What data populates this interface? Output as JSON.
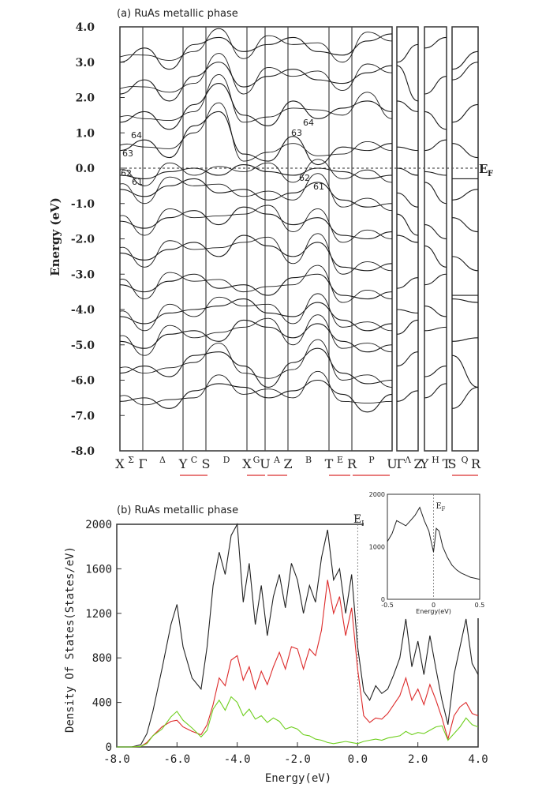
{
  "chart_data": [
    {
      "type": "line",
      "title": "(a) RuAs metallic phase",
      "ylabel": "Energy (eV)",
      "ylim": [
        -8.0,
        4.0
      ],
      "yticks": [
        "4.0",
        "3.0",
        "2.0",
        "1.0",
        "0.0",
        "-1.0",
        "-2.0",
        "-3.0",
        "-4.0",
        "-5.0",
        "-6.0",
        "-7.0",
        "-8.0"
      ],
      "fermi_label": "E",
      "fermi_sub": "F",
      "kpath_labels": [
        {
          "text": "X",
          "size": "big"
        },
        {
          "text": "Σ",
          "size": "small"
        },
        {
          "text": "Γ",
          "size": "big"
        },
        {
          "text": "Δ",
          "size": "small"
        },
        {
          "text": "Y",
          "size": "big"
        },
        {
          "text": "C",
          "size": "small"
        },
        {
          "text": "S",
          "size": "big"
        },
        {
          "text": "D",
          "size": "small"
        },
        {
          "text": "X",
          "size": "big"
        },
        {
          "text": "G",
          "size": "small"
        },
        {
          "text": "U",
          "size": "big"
        },
        {
          "text": "A",
          "size": "small"
        },
        {
          "text": "Z",
          "size": "big"
        },
        {
          "text": "B",
          "size": "small"
        },
        {
          "text": "T",
          "size": "big"
        },
        {
          "text": "E",
          "size": "small"
        },
        {
          "text": "R",
          "size": "big"
        },
        {
          "text": "P",
          "size": "small"
        },
        {
          "text": "U",
          "size": "big"
        },
        {
          "text": "Γ",
          "size": "big"
        },
        {
          "text": "Λ",
          "size": "small"
        },
        {
          "text": "Z",
          "size": "big"
        },
        {
          "text": "Y",
          "size": "big"
        },
        {
          "text": "H",
          "size": "small"
        },
        {
          "text": "T",
          "size": "big"
        },
        {
          "text": "S",
          "size": "big"
        },
        {
          "text": "Q",
          "size": "small"
        },
        {
          "text": "R",
          "size": "big"
        }
      ],
      "band_labels": [
        "64",
        "63",
        "62",
        "61",
        "64",
        "63",
        "62",
        "61"
      ],
      "series": [
        {
          "values": [
            -6.6,
            -6.5,
            -6.8,
            -6.3,
            -6.1,
            -6.2,
            -6.5,
            -6.3,
            -6.0,
            -6.4,
            -6.9,
            -6.4
          ]
        },
        {
          "values": [
            -5.8,
            -5.6,
            -5.9,
            -5.3,
            -5.2,
            -5.6,
            -6.2,
            -5.5,
            -5.1,
            -5.8,
            -6.1,
            -6.0
          ]
        },
        {
          "values": [
            -4.9,
            -5.1,
            -4.7,
            -4.6,
            -4.9,
            -4.3,
            -4.5,
            -4.8,
            -4.4,
            -4.9,
            -5.2,
            -5.0
          ]
        },
        {
          "values": [
            -4.2,
            -4.4,
            -4.1,
            -4.0,
            -3.9,
            -3.7,
            -4.1,
            -4.2,
            -3.8,
            -4.3,
            -4.6,
            -4.4
          ]
        },
        {
          "values": [
            -3.3,
            -3.5,
            -3.2,
            -3.0,
            -3.4,
            -3.3,
            -3.6,
            -3.1,
            -3.0,
            -3.6,
            -3.7,
            -3.5
          ]
        },
        {
          "values": [
            -2.4,
            -2.6,
            -2.3,
            -2.1,
            -2.5,
            -1.9,
            -2.2,
            -2.5,
            -2.1,
            -2.8,
            -2.9,
            -2.7
          ]
        },
        {
          "values": [
            -1.5,
            -1.7,
            -1.4,
            -1.2,
            -1.6,
            -1.1,
            -1.3,
            -1.6,
            -1.4,
            -1.9,
            -2.0,
            -1.8
          ]
        },
        {
          "values": [
            -0.6,
            -0.8,
            -0.5,
            -0.3,
            -0.7,
            -0.6,
            -0.9,
            -0.7,
            -0.4,
            -0.9,
            -1.1,
            -1.0
          ]
        },
        {
          "values": [
            -0.2,
            -0.3,
            -0.1,
            0.0,
            -0.2,
            0.1,
            -0.1,
            -0.2,
            0.0,
            -0.1,
            -0.3,
            -0.2
          ]
        },
        {
          "values": [
            0.5,
            0.8,
            0.3,
            1.2,
            1.6,
            0.4,
            0.2,
            0.9,
            0.1,
            0.6,
            0.5,
            0.7
          ]
        },
        {
          "values": [
            1.3,
            1.6,
            1.1,
            1.8,
            2.4,
            1.5,
            1.2,
            1.9,
            1.4,
            1.7,
            1.9,
            1.6
          ]
        },
        {
          "values": [
            2.1,
            2.5,
            1.9,
            2.6,
            3.0,
            2.3,
            2.6,
            2.8,
            2.5,
            2.4,
            2.7,
            2.9
          ]
        },
        {
          "values": [
            3.0,
            3.4,
            2.8,
            3.5,
            3.7,
            3.3,
            3.5,
            3.7,
            3.3,
            3.2,
            3.6,
            3.8
          ]
        }
      ]
    },
    {
      "type": "line",
      "title": "(b) RuAs metallic phase",
      "xlabel": "Energy(eV)",
      "ylabel": "Density Of States(States/eV)",
      "xlim": [
        -8.0,
        4.0
      ],
      "ylim": [
        0,
        2000
      ],
      "xticks": [
        "-8.0",
        "-6.0",
        "-4.0",
        "-2.0",
        "0.0",
        "2.0",
        "4.0"
      ],
      "yticks": [
        "0",
        "400",
        "800",
        "1200",
        "1600",
        "2000"
      ],
      "fermi_label": "E",
      "fermi_sub": "F",
      "x": [
        -8.0,
        -7.5,
        -7.2,
        -7.0,
        -6.8,
        -6.5,
        -6.2,
        -6.0,
        -5.8,
        -5.5,
        -5.2,
        -5.0,
        -4.8,
        -4.6,
        -4.4,
        -4.2,
        -4.0,
        -3.8,
        -3.6,
        -3.4,
        -3.2,
        -3.0,
        -2.8,
        -2.6,
        -2.4,
        -2.2,
        -2.0,
        -1.8,
        -1.6,
        -1.4,
        -1.2,
        -1.0,
        -0.8,
        -0.6,
        -0.4,
        -0.2,
        0.0,
        0.2,
        0.4,
        0.6,
        0.8,
        1.0,
        1.2,
        1.4,
        1.6,
        1.8,
        2.0,
        2.2,
        2.4,
        2.6,
        2.8,
        3.0,
        3.2,
        3.4,
        3.6,
        3.8,
        4.0
      ],
      "series": [
        {
          "color": "#222222",
          "values": [
            0,
            0,
            20,
            120,
            320,
            700,
            1100,
            1280,
            900,
            620,
            520,
            900,
            1450,
            1750,
            1550,
            1900,
            2000,
            1300,
            1650,
            1100,
            1450,
            1000,
            1350,
            1550,
            1250,
            1650,
            1500,
            1200,
            1450,
            1300,
            1700,
            1950,
            1500,
            1600,
            1200,
            1550,
            900,
            500,
            420,
            550,
            480,
            520,
            650,
            800,
            1150,
            720,
            950,
            650,
            1000,
            700,
            420,
            200,
            650,
            900,
            1150,
            750,
            650
          ]
        },
        {
          "color": "#dd2b2b",
          "values": [
            0,
            0,
            5,
            40,
            100,
            180,
            230,
            240,
            180,
            140,
            110,
            200,
            380,
            620,
            550,
            780,
            820,
            600,
            720,
            520,
            680,
            560,
            720,
            850,
            700,
            900,
            880,
            700,
            880,
            820,
            1050,
            1500,
            1200,
            1350,
            1000,
            1250,
            700,
            280,
            220,
            260,
            250,
            300,
            380,
            460,
            620,
            420,
            520,
            380,
            560,
            420,
            260,
            70,
            280,
            360,
            400,
            300,
            280
          ]
        },
        {
          "color": "#6fcf1f",
          "values": [
            0,
            0,
            5,
            30,
            100,
            160,
            270,
            320,
            240,
            170,
            90,
            150,
            340,
            420,
            330,
            450,
            400,
            280,
            340,
            250,
            280,
            220,
            260,
            230,
            160,
            180,
            160,
            110,
            100,
            70,
            60,
            40,
            30,
            40,
            50,
            40,
            30,
            50,
            60,
            70,
            60,
            80,
            90,
            100,
            140,
            110,
            130,
            120,
            150,
            180,
            190,
            60,
            120,
            180,
            260,
            200,
            180
          ]
        }
      ],
      "inset": {
        "fermi_label": "E",
        "fermi_sub": "F",
        "xlabel": "Energy(eV)",
        "xlim": [
          -0.5,
          0.5
        ],
        "ylim": [
          0,
          2000
        ],
        "xticks": [
          "-0.5",
          "0",
          "0.5"
        ],
        "yticks": [
          "0",
          "1000",
          "2000"
        ],
        "x": [
          -0.5,
          -0.45,
          -0.4,
          -0.35,
          -0.3,
          -0.25,
          -0.2,
          -0.15,
          -0.1,
          -0.05,
          -0.02,
          0.0,
          0.03,
          0.06,
          0.1,
          0.15,
          0.2,
          0.25,
          0.3,
          0.35,
          0.4,
          0.45,
          0.5
        ],
        "values": [
          1100,
          1250,
          1500,
          1450,
          1400,
          1500,
          1600,
          1750,
          1500,
          1300,
          1050,
          900,
          1350,
          1300,
          1000,
          800,
          650,
          560,
          500,
          460,
          420,
          400,
          380
        ]
      }
    }
  ]
}
